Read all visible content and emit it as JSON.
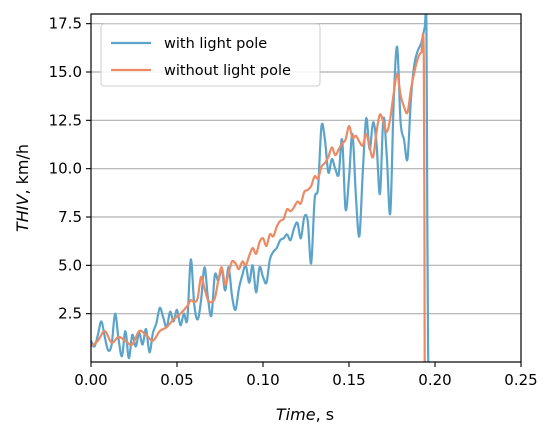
{
  "chart_data": {
    "type": "line",
    "xlabel_italic": "Time",
    "xlabel_rest": ", s",
    "ylabel_italic": "THIV",
    "ylabel_rest": ", km/h",
    "xlim": [
      0.0,
      0.25
    ],
    "ylim": [
      0.0,
      18.0
    ],
    "xticks": [
      0.0,
      0.05,
      0.1,
      0.15,
      0.2,
      0.25
    ],
    "xtick_labels": [
      "0.00",
      "0.05",
      "0.10",
      "0.15",
      "0.20",
      "0.25"
    ],
    "yticks": [
      2.5,
      5.0,
      7.5,
      10.0,
      12.5,
      15.0,
      17.5
    ],
    "ytick_labels": [
      "2.5",
      "5.0",
      "7.5",
      "10.0",
      "12.5",
      "15.0",
      "17.5"
    ],
    "grid": "horizontal",
    "legend_position": "top-left",
    "series": [
      {
        "name": "with light pole",
        "color": "#5ba3c9",
        "x": [
          0.0,
          0.002,
          0.004,
          0.006,
          0.008,
          0.01,
          0.012,
          0.014,
          0.016,
          0.018,
          0.02,
          0.022,
          0.024,
          0.026,
          0.028,
          0.03,
          0.032,
          0.034,
          0.036,
          0.038,
          0.04,
          0.042,
          0.044,
          0.046,
          0.048,
          0.05,
          0.052,
          0.054,
          0.056,
          0.058,
          0.06,
          0.062,
          0.064,
          0.066,
          0.068,
          0.07,
          0.072,
          0.074,
          0.076,
          0.078,
          0.08,
          0.082,
          0.084,
          0.086,
          0.088,
          0.09,
          0.092,
          0.094,
          0.096,
          0.098,
          0.1,
          0.102,
          0.104,
          0.106,
          0.108,
          0.11,
          0.112,
          0.114,
          0.116,
          0.118,
          0.12,
          0.122,
          0.124,
          0.126,
          0.128,
          0.13,
          0.132,
          0.134,
          0.136,
          0.138,
          0.14,
          0.142,
          0.144,
          0.146,
          0.148,
          0.15,
          0.152,
          0.154,
          0.156,
          0.158,
          0.16,
          0.162,
          0.164,
          0.166,
          0.168,
          0.17,
          0.172,
          0.174,
          0.176,
          0.178,
          0.18,
          0.182,
          0.184,
          0.186,
          0.188,
          0.19,
          0.192,
          0.194,
          0.195,
          0.1955,
          0.196,
          0.1965
        ],
        "y": [
          1.1,
          0.8,
          1.4,
          2.1,
          1.3,
          0.6,
          0.9,
          2.5,
          1.2,
          0.3,
          1.6,
          0.2,
          1.4,
          0.8,
          1.5,
          0.9,
          1.7,
          0.5,
          1.5,
          2.0,
          2.8,
          2.3,
          1.8,
          2.6,
          2.1,
          2.7,
          1.9,
          2.5,
          2.2,
          5.3,
          3.0,
          2.2,
          3.2,
          4.9,
          3.3,
          2.4,
          4.5,
          4.2,
          4.8,
          3.7,
          4.9,
          3.4,
          2.7,
          3.8,
          4.5,
          5.0,
          4.1,
          5.0,
          3.6,
          4.9,
          4.4,
          4.1,
          5.3,
          5.7,
          5.9,
          6.3,
          6.4,
          6.6,
          6.3,
          6.9,
          7.2,
          6.4,
          7.5,
          7.3,
          5.1,
          8.4,
          9.0,
          12.2,
          11.5,
          9.8,
          10.5,
          10.0,
          9.7,
          11.5,
          7.9,
          9.5,
          11.8,
          8.6,
          6.5,
          9.8,
          12.6,
          11.0,
          12.4,
          11.3,
          8.7,
          12.6,
          10.6,
          7.7,
          13.5,
          16.3,
          12.4,
          11.5,
          10.5,
          13.6,
          15.4,
          16.1,
          16.5,
          17.3,
          17.6,
          8.0,
          0.5,
          0.0
        ]
      },
      {
        "name": "without light pole",
        "color": "#ec8a64",
        "x": [
          0.0,
          0.004,
          0.008,
          0.012,
          0.016,
          0.02,
          0.024,
          0.028,
          0.032,
          0.036,
          0.04,
          0.044,
          0.048,
          0.052,
          0.056,
          0.058,
          0.06,
          0.062,
          0.064,
          0.066,
          0.068,
          0.07,
          0.072,
          0.074,
          0.076,
          0.078,
          0.08,
          0.082,
          0.084,
          0.086,
          0.088,
          0.09,
          0.092,
          0.094,
          0.096,
          0.098,
          0.1,
          0.102,
          0.104,
          0.106,
          0.108,
          0.11,
          0.112,
          0.114,
          0.116,
          0.118,
          0.12,
          0.122,
          0.124,
          0.126,
          0.128,
          0.13,
          0.132,
          0.134,
          0.136,
          0.138,
          0.14,
          0.142,
          0.144,
          0.146,
          0.148,
          0.15,
          0.152,
          0.154,
          0.156,
          0.158,
          0.16,
          0.162,
          0.164,
          0.166,
          0.168,
          0.17,
          0.172,
          0.174,
          0.176,
          0.178,
          0.18,
          0.182,
          0.184,
          0.186,
          0.188,
          0.19,
          0.192,
          0.1935,
          0.194
        ],
        "y": [
          0.8,
          1.1,
          1.6,
          1.0,
          1.3,
          1.1,
          0.9,
          1.6,
          1.4,
          1.1,
          1.6,
          1.8,
          2.2,
          2.5,
          2.9,
          3.2,
          3.1,
          3.3,
          4.4,
          3.8,
          3.2,
          3.1,
          3.3,
          4.2,
          4.9,
          4.0,
          4.6,
          5.2,
          5.1,
          4.8,
          5.2,
          5.0,
          5.5,
          5.9,
          5.6,
          6.2,
          6.4,
          6.0,
          6.6,
          6.5,
          7.0,
          7.3,
          7.4,
          7.9,
          7.8,
          8.0,
          8.3,
          8.2,
          8.8,
          8.9,
          9.1,
          9.6,
          9.5,
          10.1,
          10.3,
          10.6,
          11.1,
          10.7,
          11.0,
          11.3,
          11.5,
          12.2,
          11.6,
          11.7,
          11.4,
          11.2,
          11.8,
          11.1,
          10.6,
          11.9,
          12.8,
          12.4,
          11.9,
          12.6,
          13.9,
          14.9,
          13.8,
          13.2,
          12.9,
          14.1,
          15.0,
          15.7,
          16.0,
          15.7,
          0.0
        ]
      }
    ]
  }
}
